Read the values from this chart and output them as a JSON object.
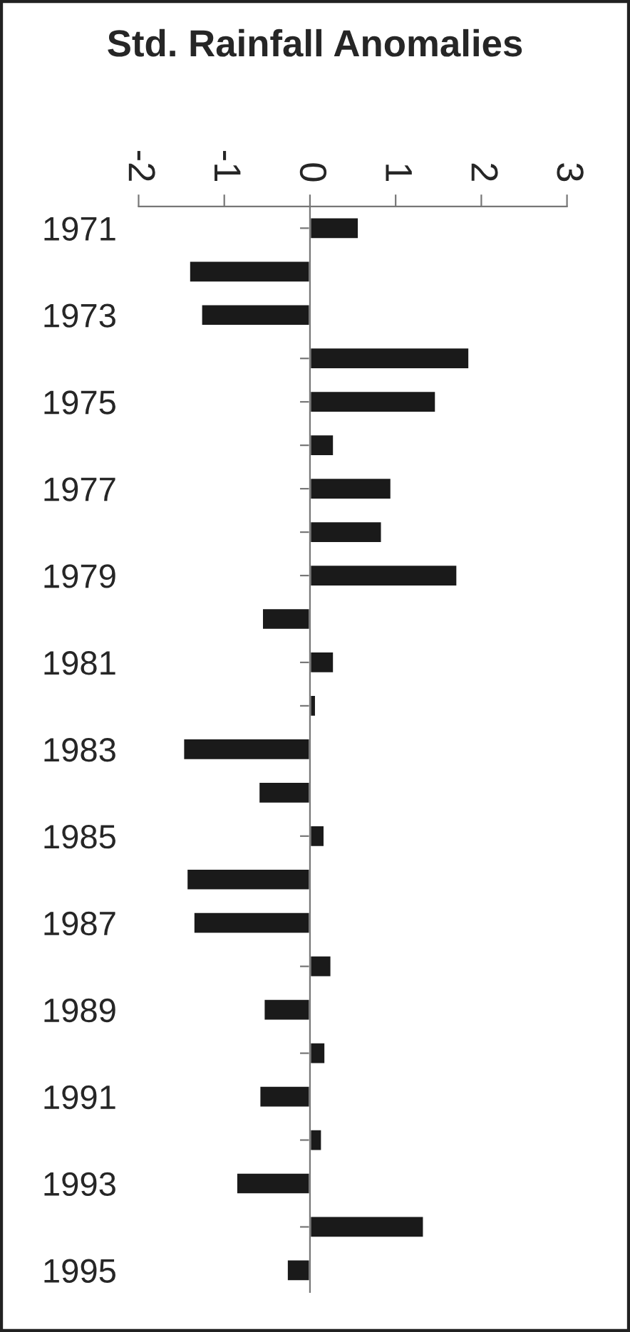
{
  "chart_data": {
    "type": "bar",
    "orientation": "horizontal",
    "title": "Std. Rainfall Anomalies",
    "categories": [
      "1971",
      null,
      "1973",
      null,
      "1975",
      null,
      "1977",
      null,
      "1979",
      null,
      "1981",
      null,
      "1983",
      null,
      "1985",
      null,
      "1987",
      null,
      "1989",
      null,
      "1991",
      null,
      "1993",
      null,
      "1995"
    ],
    "values": [
      0.57,
      -1.41,
      -1.27,
      1.86,
      1.47,
      0.28,
      0.95,
      0.84,
      1.72,
      -0.56,
      0.28,
      0.07,
      -1.48,
      -0.6,
      0.17,
      -1.44,
      -1.36,
      0.25,
      -0.54,
      0.18,
      -0.59,
      0.14,
      -0.86,
      1.33,
      -0.27
    ],
    "color": "#1a1a1a",
    "xlim": [
      -2,
      3
    ],
    "xticks": [
      -2,
      -1,
      0,
      1,
      2,
      3
    ]
  }
}
